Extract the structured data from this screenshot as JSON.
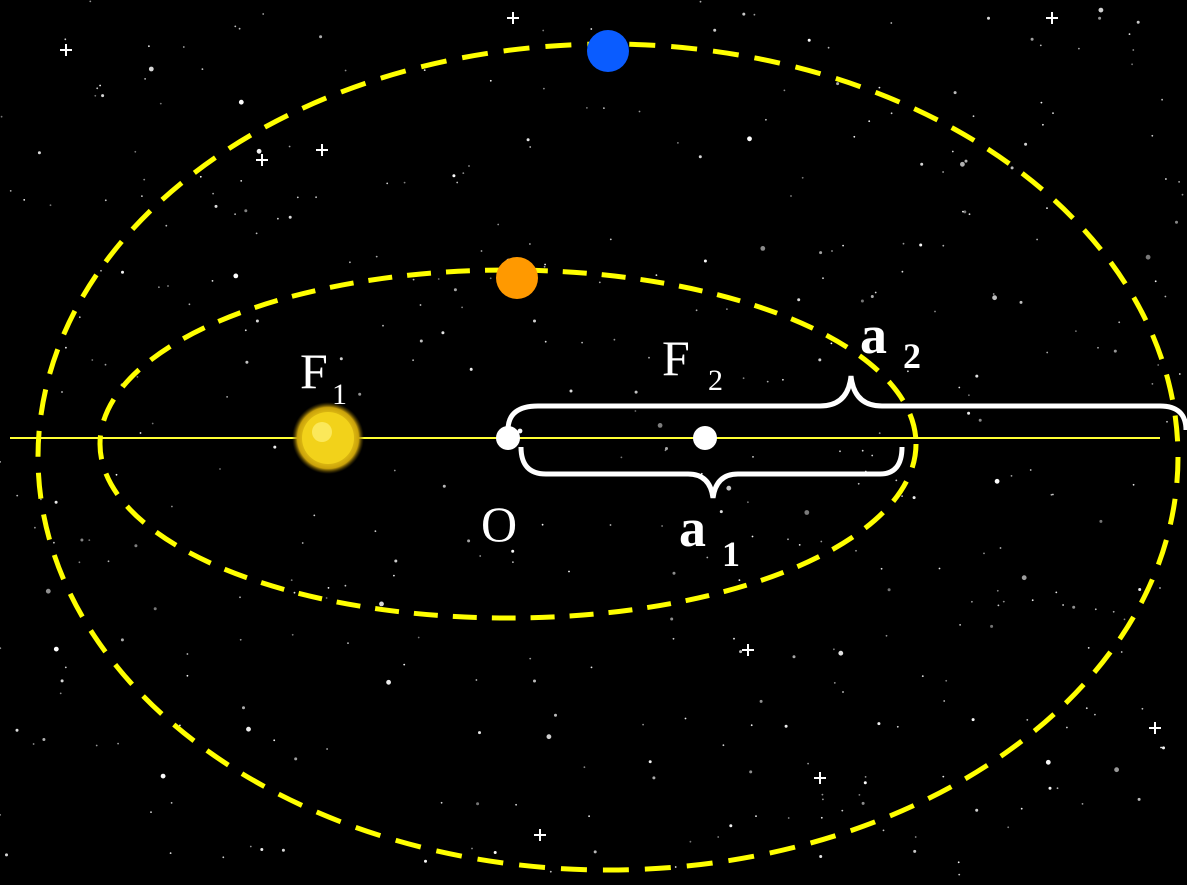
{
  "colors": {
    "background": "#000000",
    "orbit": "#ffff00",
    "axis": "#ffff33",
    "sun": "#f2d21a",
    "inner_planet": "#ff9900",
    "outer_planet": "#0a5cff",
    "brace": "#ffffff",
    "points": "#ffffff"
  },
  "labels": {
    "focus1_letter": "F",
    "focus1_sub": "1",
    "focus2_letter": "F",
    "focus2_sub": "2",
    "center": "O",
    "axis1_letter": "a",
    "axis1_sub": "1",
    "axis2_letter": "a",
    "axis2_sub": "2"
  },
  "icons": {
    "sun": "sun-icon",
    "inner_planet": "planet-icon",
    "outer_planet": "planet-icon",
    "stars": "starfield-icon"
  }
}
